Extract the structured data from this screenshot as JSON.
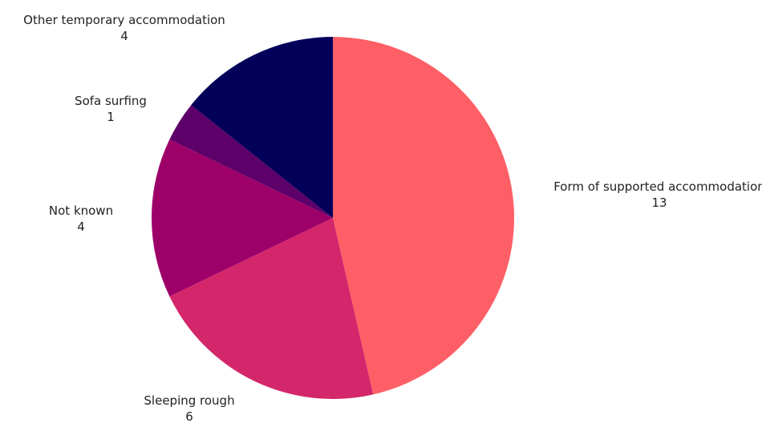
{
  "chart_data": {
    "type": "pie",
    "start_angle_deg": 0,
    "direction": "clockwise",
    "slices": [
      {
        "label": "Form of supported accommodation",
        "value": 13,
        "color": "#fe5f66"
      },
      {
        "label": "Sleeping rough",
        "value": 6,
        "color": "#d4266b"
      },
      {
        "label": "Not known",
        "value": 4,
        "color": "#9e006a"
      },
      {
        "label": "Sofa surfing",
        "value": 1,
        "color": "#5e0069"
      },
      {
        "label": "Other temporary accommodation",
        "value": 4,
        "color": "#03005a"
      }
    ],
    "legend": "none",
    "title": ""
  }
}
